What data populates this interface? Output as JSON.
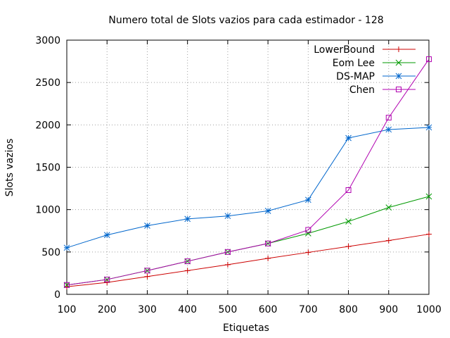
{
  "chart_data": {
    "type": "line",
    "title": "Numero total de Slots vazios para cada estimador - 128",
    "xlabel": "Etiquetas",
    "ylabel": "Slots vazios",
    "xlim": [
      100,
      1000
    ],
    "ylim": [
      0,
      3000
    ],
    "x_ticks": [
      100,
      200,
      300,
      400,
      500,
      600,
      700,
      800,
      900,
      1000
    ],
    "y_ticks": [
      0,
      500,
      1000,
      1500,
      2000,
      2500,
      3000
    ],
    "grid": true,
    "legend_position": "top-right",
    "x": [
      100,
      200,
      300,
      400,
      500,
      600,
      700,
      800,
      900,
      1000
    ],
    "series": [
      {
        "name": "LowerBound",
        "color": "#cc0000",
        "marker": "plus",
        "values": [
          90,
          140,
          210,
          280,
          350,
          425,
          495,
          565,
          635,
          710
        ]
      },
      {
        "name": "Eom Lee",
        "color": "#009900",
        "marker": "cross",
        "values": [
          110,
          175,
          280,
          390,
          500,
          600,
          720,
          860,
          1025,
          1155
        ]
      },
      {
        "name": "DS-MAP",
        "color": "#0066cc",
        "marker": "star",
        "values": [
          550,
          700,
          810,
          890,
          925,
          985,
          1115,
          1845,
          1945,
          1970
        ]
      },
      {
        "name": "Chen",
        "color": "#b000b0",
        "marker": "square",
        "values": [
          110,
          175,
          280,
          390,
          500,
          600,
          760,
          1230,
          2085,
          2775
        ]
      }
    ]
  }
}
